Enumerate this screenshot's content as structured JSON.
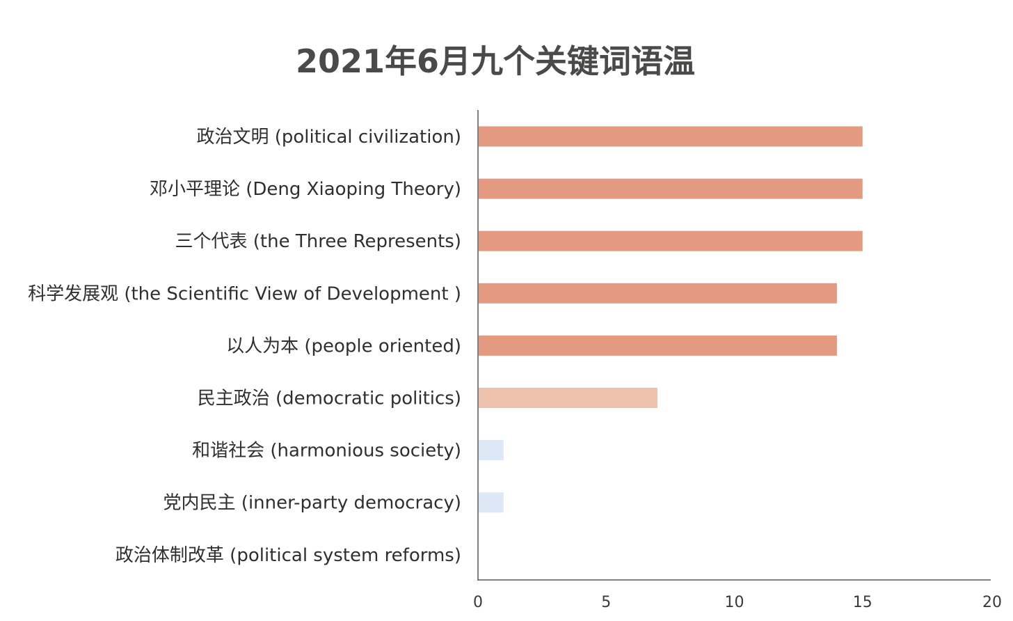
{
  "chart_data": {
    "type": "bar",
    "orientation": "horizontal",
    "title": "2021年6月九个关键词语温",
    "xlabel": "",
    "ylabel": "",
    "categories": [
      "政治文明 (political civilization)",
      "邓小平理论 (Deng Xiaoping Theory)",
      "三个代表 (the Three Represents)",
      "科学发展观 (the Scientific View of Development )",
      "以人为本 (people oriented)",
      "民主政治 (democratic politics)",
      "和谐社会 (harmonious society)",
      "党内民主 (inner-party democracy)",
      "政治体制改革 (political system reforms)"
    ],
    "values": [
      15,
      15,
      15,
      14,
      14,
      7,
      1,
      1,
      0
    ],
    "bar_colors": [
      "#e39a80",
      "#e39a80",
      "#e39a80",
      "#e39a80",
      "#e39a80",
      "#edc1ac",
      "#dce8f5",
      "#dce8f5",
      "#dce8f5"
    ],
    "xlim": [
      0,
      20
    ],
    "xticks": [
      "0",
      "5",
      "10",
      "15",
      "20"
    ],
    "grid": false,
    "legend": "none"
  }
}
